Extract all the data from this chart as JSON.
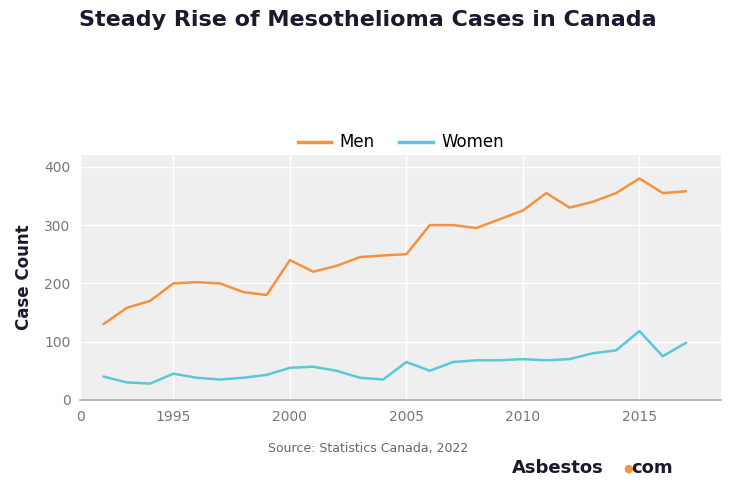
{
  "title": "Steady Rise of Mesothelioma Cases in Canada",
  "ylabel": "Case Count",
  "source_text": "Source: Statistics Canada, 2022",
  "years": [
    1992,
    1993,
    1994,
    1995,
    1996,
    1997,
    1998,
    1999,
    2000,
    2001,
    2002,
    2003,
    2004,
    2005,
    2006,
    2007,
    2008,
    2009,
    2010,
    2011,
    2012,
    2013,
    2014,
    2015,
    2016,
    2017
  ],
  "men": [
    130,
    158,
    170,
    200,
    202,
    200,
    185,
    180,
    240,
    220,
    230,
    245,
    248,
    250,
    300,
    300,
    295,
    310,
    325,
    355,
    330,
    340,
    355,
    380,
    355,
    358
  ],
  "women": [
    40,
    30,
    28,
    45,
    38,
    35,
    38,
    43,
    55,
    57,
    50,
    38,
    35,
    65,
    50,
    65,
    68,
    68,
    70,
    68,
    70,
    80,
    85,
    118,
    75,
    98
  ],
  "men_color": "#F5923E",
  "women_color": "#5BC8D5",
  "bg_color": "#ffffff",
  "plot_bg_color": "#efefef",
  "grid_color": "#ffffff",
  "title_color": "#1a1a2e",
  "ylim": [
    0,
    420
  ],
  "yticks": [
    0,
    100,
    200,
    300,
    400
  ],
  "xlim": [
    1991.0,
    2018.5
  ],
  "xtick_positions": [
    1991.0,
    1995,
    2000,
    2005,
    2010,
    2015
  ],
  "xtick_labels": [
    "0",
    "1995",
    "2000",
    "2005",
    "2010",
    "2015"
  ],
  "line_width": 1.8,
  "title_fontsize": 16,
  "axis_label_fontsize": 12,
  "tick_fontsize": 10,
  "legend_fontsize": 12
}
